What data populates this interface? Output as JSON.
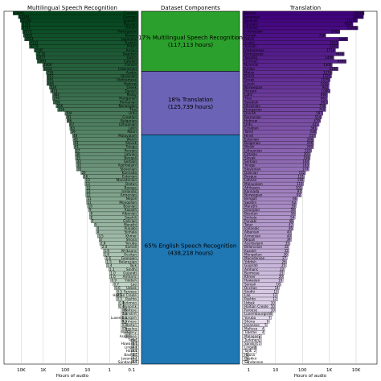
{
  "chart_data": [
    {
      "type": "bar",
      "title": "Multilingual Speech Recognition",
      "xlabel": "",
      "xscale": "log",
      "xticks": [
        "10K",
        "1K",
        "100",
        "10",
        "1",
        "0.1"
      ],
      "categories": [
        "Chinese",
        "German",
        "Spanish",
        "Russian",
        "French",
        "Portuguese",
        "Korean",
        "Japanese",
        "Turkish",
        "Polish",
        "Italian",
        "Swedish",
        "Dutch",
        "Catalan",
        "Finnish",
        "Indonesian",
        "Arabic",
        "Ukrainian",
        "Vietnamese",
        "Hebrew",
        "Greek",
        "Danish",
        "Malay",
        "Hungarian",
        "Romanian",
        "Norwegian",
        "Thai",
        "Urdu",
        "Croatian",
        "Bulgarian",
        "Lithuanian",
        "Latin",
        "Maori",
        "Malayalam",
        "Welsh",
        "Slovak",
        "Telugu",
        "Persian",
        "Latvian",
        "Bengali",
        "Serbian",
        "Azerbaijani",
        "Slovenian",
        "Kannada",
        "Estonian",
        "Macedonian",
        "Breton",
        "Basque",
        "Icelandic",
        "Armenian",
        "Nepali",
        "Mongolian",
        "Bosnian",
        "Kazakh",
        "Albanian",
        "Swahili",
        "Galician",
        "Marathi",
        "Punjabi",
        "Sinhala",
        "Khmer",
        "Shona",
        "Yoruba",
        "Somali",
        "Afrikaans",
        "Occitan",
        "Georgian",
        "Belarusian",
        "Tajik",
        "Sindhi",
        "Gujarati",
        "Amharic",
        "Yiddish",
        "Lao",
        "Uzbek",
        "Faroese",
        "Haitian Creole",
        "Pashto",
        "Turkmen",
        "Nynorsk",
        "Maltese",
        "Sanskrit",
        "Luxembourgish",
        "Burmese",
        "Tibetan",
        "Tagalog",
        "Malagasy",
        "Assamese",
        "Tatar",
        "Hawaiian",
        "Lingala",
        "Hausa",
        "Bashkir",
        "Javanese",
        "Sundanese"
      ],
      "values": [
        23446,
        13344,
        11100,
        9761,
        9752,
        8573,
        7993,
        7054,
        4333,
        4278,
        2585,
        2119,
        2077,
        1883,
        1066,
        1014,
        739,
        697,
        691,
        688,
        529,
        473,
        382,
        379,
        356,
        266,
        226,
        104,
        91,
        86,
        67,
        63,
        59,
        48,
        45,
        43,
        41,
        37,
        36,
        35,
        33,
        32,
        31,
        20,
        16,
        13,
        13,
        12,
        12,
        12,
        11,
        11,
        10,
        9,
        8,
        8,
        7,
        5,
        4,
        4,
        3.5,
        3,
        2.8,
        2.4,
        1.9,
        1.9,
        1.6,
        1.5,
        1.4,
        1.1,
        1.0,
        1.0,
        0.9,
        0.7,
        0.6,
        0.5,
        0.5,
        0.5,
        0.4,
        0.4,
        0.3,
        0.3,
        0.3,
        0.3,
        0.3,
        0.3,
        0.2,
        0.2,
        0.1,
        0.1,
        0.1,
        0.1,
        0.1,
        0.1,
        0.1
      ],
      "labels": [
        "23446",
        "13344",
        "11100",
        "9761",
        "9752",
        "8573",
        "7993",
        "7054",
        "4333",
        "4278",
        "2585",
        "2119",
        "2077",
        "1883",
        "1066",
        "1014",
        "739",
        "697",
        "691",
        "688",
        "529",
        "473",
        "382",
        "379",
        "356",
        "266",
        "226",
        "104",
        "91",
        "86",
        "67",
        "63",
        "59",
        "48",
        "45",
        "43",
        "41",
        "37",
        "36",
        "35",
        "33",
        "32",
        "31",
        "20",
        "16",
        "13",
        "13",
        "12",
        "12",
        "12",
        "11",
        "11",
        "10",
        "9",
        "8",
        "8",
        "7",
        "5",
        "4",
        "4",
        "3.5",
        "3",
        "2.8",
        "2.4",
        "1.9",
        "1.9",
        "1.6",
        "1.5",
        "1.4",
        "1.1",
        "1.0",
        "1.0",
        "0.9",
        "0.7",
        "0.6",
        "0.5",
        "0.5",
        "0.5",
        "0.4",
        "0.4",
        "0.3",
        "0.3",
        "0.3",
        "0.3",
        "0.3",
        "0.3",
        "0.2",
        "0.2",
        "0.1",
        "0.1",
        "0.1",
        "0.1",
        "0.1",
        "0.1",
        "0.1"
      ],
      "color_dark": "#00441b",
      "color_light": "#f7fcf5"
    },
    {
      "type": "bar",
      "title": "Dataset Components",
      "segments": [
        {
          "label": "17% Multilingual Speech Recognition",
          "detail": "(117,113 hours)",
          "fraction": 0.17,
          "color": "#2ca02c"
        },
        {
          "label": "18% Translation",
          "detail": "(125,739 hours)",
          "fraction": 0.18,
          "color": "#6b63b5"
        },
        {
          "label": "65% English Speech Recognition",
          "detail": "(438,218 hours)",
          "fraction": 0.65,
          "color": "#1f77b4"
        }
      ]
    },
    {
      "type": "bar",
      "title": "Translation",
      "xlabel": "Hours of audio",
      "xscale": "log",
      "xticks": [
        "1",
        "10",
        "100",
        "1K",
        "10K"
      ],
      "categories": [
        "Korean",
        "Japanese",
        "Spanish",
        "Russian",
        "Chinese",
        "Indonesian",
        "Finnish",
        "Polish",
        "Arabic",
        "Turkish",
        "Vietnamese",
        "Portuguese",
        "Tagalog",
        "German",
        "Nynorsk",
        "Italian",
        "Malay",
        "Dutch",
        "Greek",
        "Czech",
        "Norwegian",
        "Persian",
        "Latin",
        "Thai",
        "Swedish",
        "Ukrainian",
        "Hungarian",
        "Danish",
        "Romanian",
        "Hebrew",
        "Urdu",
        "Croatian",
        "Tamil",
        "Hindi",
        "Estonian",
        "Bulgarian",
        "Welsh",
        "Lithuanian",
        "Catalan",
        "Slovak",
        "Serbian",
        "Telugu",
        "Slovenian",
        "Galician",
        "Basque",
        "Latvian",
        "Malayalam",
        "Afrikaans",
        "Kannada",
        "Norwegian",
        "Bengali",
        "Swahili",
        "Marathi",
        "Georgian",
        "Bosnian",
        "Sinhala",
        "Punjabi",
        "Tatar",
        "Icelandic",
        "Albanian",
        "Armenian",
        "Nepali",
        "Azerbaijani",
        "Belarusian",
        "Kazakh",
        "Mongolian",
        "Macedonian",
        "Yiddish",
        "Gujarati",
        "Amharic",
        "Burmese",
        "Khmer",
        "Hawaiian",
        "Somali",
        "Occitan",
        "Sindhi",
        "Lao",
        "Pashto",
        "Uzbek",
        "Haitian Creole",
        "Faroese",
        "Luxembourgish",
        "Yoruba",
        "Shona",
        "Javanese",
        "Maltese",
        "Tibetan",
        "Malagasy",
        "Turkmen",
        "Sanskrit",
        "Lingala",
        "Tajik",
        "Hausa",
        "Bashkir",
        "Sundanese"
      ],
      "values": [
        19938,
        18860,
        11281,
        7687,
        11731,
        2483,
        750,
        4880,
        2253,
        2241,
        1719,
        3620,
        1499,
        4309,
        1300,
        2145,
        1276,
        1221,
        1079,
        1000,
        982,
        1080,
        868,
        862,
        883,
        758,
        749,
        587,
        524,
        479,
        421,
        361,
        338,
        317,
        268,
        266,
        260,
        220,
        201,
        196,
        184,
        183,
        177,
        132,
        121,
        116,
        110,
        101,
        97,
        92,
        66,
        62,
        59,
        56,
        56,
        54,
        48,
        47,
        46,
        40,
        40,
        39,
        35,
        32,
        32,
        30,
        27,
        26,
        25,
        22,
        21,
        20,
        19,
        16,
        14,
        13,
        12,
        12,
        10,
        10,
        10,
        8,
        7,
        6,
        5,
        4,
        4,
        3,
        3,
        3,
        2,
        2,
        1,
        1,
        1
      ],
      "labels": [
        "19938",
        "18860",
        "11281",
        "7687",
        "11731",
        "2483",
        "750",
        "4880",
        "2253",
        "2241",
        "1719",
        "3620",
        "1499",
        "4309",
        "1300",
        "2145",
        "1276",
        "1221",
        "1079",
        "1000",
        "982",
        "1080",
        "868",
        "862",
        "883",
        "758",
        "749",
        "587",
        "524",
        "479",
        "421",
        "361",
        "338",
        "317",
        "268",
        "266",
        "260",
        "220",
        "201",
        "196",
        "184",
        "183",
        "177",
        "132",
        "121",
        "116",
        "110",
        "101",
        "97",
        "92",
        "66",
        "62",
        "59",
        "56",
        "56",
        "54",
        "48",
        "47",
        "46",
        "40",
        "40",
        "39",
        "35",
        "32",
        "32",
        "30",
        "27",
        "26",
        "25",
        "22",
        "21",
        "20",
        "19",
        "16",
        "14",
        "13",
        "12",
        "12",
        "10",
        "10",
        "10",
        "8",
        "7",
        "6",
        "5",
        "4",
        "4",
        "3",
        "3",
        "3",
        "2",
        "2",
        "1",
        "1",
        "1"
      ],
      "color_dark": "#3f007d",
      "color_light": "#fcfbfd"
    }
  ],
  "left_xlabel": "Hours of audio",
  "right_xlabel": "Hours of audio"
}
